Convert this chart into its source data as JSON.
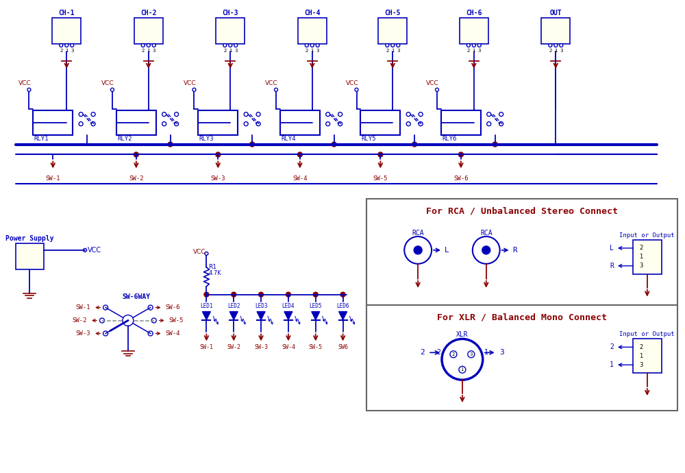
{
  "bg_color": "#ffffff",
  "blue": "#0000bb",
  "red": "#8b0000",
  "connector_fill": "#fffff0",
  "channels": [
    "CH-1",
    "CH-2",
    "CH-3",
    "CH-4",
    "CH-5",
    "CH-6",
    "OUT"
  ],
  "ch_x": [
    95,
    215,
    335,
    455,
    573,
    692,
    812
  ],
  "relay_names": [
    "RLY1",
    "RLY2",
    "RLY3",
    "RLY4",
    "RLY5",
    "RLY6"
  ],
  "relay_x": [
    75,
    197,
    317,
    437,
    555,
    673
  ],
  "sw_labels": [
    "SW-1",
    "SW-2",
    "SW-3",
    "SW-4",
    "SW-5",
    "SW-6"
  ],
  "led_labels": [
    "LED1",
    "LED2",
    "LED3",
    "LED4",
    "LED5",
    "LED6"
  ],
  "sw_bottom": [
    "SW-1",
    "SW-2",
    "SW-3",
    "SW-4",
    "SW-5",
    "SW6"
  ]
}
